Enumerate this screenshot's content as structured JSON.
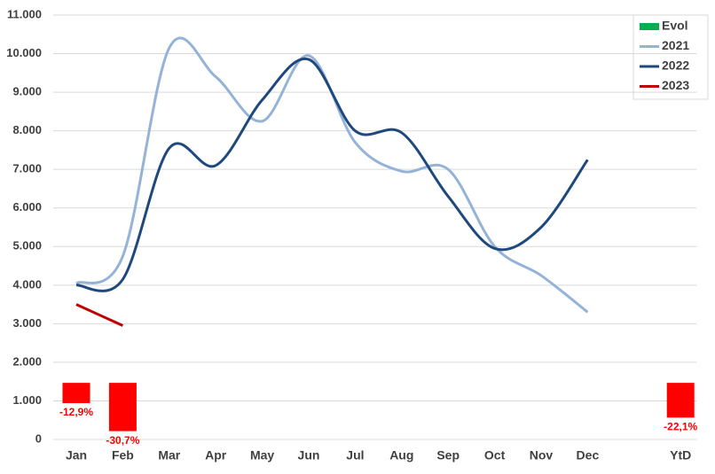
{
  "chart_data": {
    "type": "line",
    "categories": [
      "Jan",
      "Feb",
      "Mar",
      "Apr",
      "May",
      "Jun",
      "Jul",
      "Aug",
      "Sep",
      "Oct",
      "Nov",
      "Dec",
      null,
      "YtD"
    ],
    "ylim": [
      0,
      11000
    ],
    "yticks": [
      0,
      {
        "value": 1000,
        "label": "1.000"
      },
      {
        "value": 2000,
        "label": "2.000"
      },
      {
        "value": 3000,
        "label": "3.000"
      },
      {
        "value": 4000,
        "label": "4.000"
      },
      {
        "value": 5000,
        "label": "5.000"
      },
      {
        "value": 6000,
        "label": "6.000"
      },
      {
        "value": 7000,
        "label": "7.000"
      },
      {
        "value": 8000,
        "label": "8.000"
      },
      {
        "value": 9000,
        "label": "9.000"
      },
      {
        "value": 10000,
        "label": "10.000"
      },
      {
        "value": 11000,
        "label": "11.000"
      }
    ],
    "y2lim": [
      -36,
      234
    ],
    "grid": true,
    "legend": "top-right",
    "series": [
      {
        "name": "Evol",
        "type": "bar",
        "axis": "y2",
        "color": "#00b050",
        "negative_color": "#ff0000",
        "values": [
          -12.9,
          -30.7,
          null,
          null,
          null,
          null,
          null,
          null,
          null,
          null,
          null,
          null,
          null,
          -22.1
        ],
        "value_labels": [
          "-12,9%",
          "-30,7%",
          null,
          null,
          null,
          null,
          null,
          null,
          null,
          null,
          null,
          null,
          null,
          "-22,1%"
        ]
      },
      {
        "name": "2021",
        "type": "line",
        "color": "#95b3d7",
        "values": [
          4050,
          4750,
          10150,
          9400,
          8250,
          9950,
          7700,
          6950,
          7000,
          5000,
          4250,
          3300,
          null,
          null
        ]
      },
      {
        "name": "2022",
        "type": "line",
        "color": "#1f497d",
        "values": [
          4000,
          4150,
          7550,
          7100,
          8800,
          9850,
          8000,
          7950,
          6300,
          4950,
          5500,
          7250,
          null,
          null
        ]
      },
      {
        "name": "2023",
        "type": "line",
        "color": "#c00000",
        "values": [
          3500,
          2950,
          null,
          null,
          null,
          null,
          null,
          null,
          null,
          null,
          null,
          null,
          null,
          null
        ]
      }
    ]
  }
}
